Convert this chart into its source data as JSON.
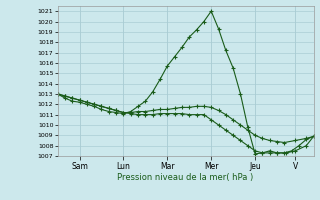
{
  "background_color": "#cce8ec",
  "grid_color": "#aacdd4",
  "line_color": "#1a5c1a",
  "xlabel": "Pression niveau de la mer( hPa )",
  "ylim": [
    1007,
    1021.5
  ],
  "yticks": [
    1007,
    1008,
    1009,
    1010,
    1011,
    1012,
    1013,
    1014,
    1015,
    1016,
    1017,
    1018,
    1019,
    1020,
    1021
  ],
  "x_day_labels": [
    "Sam",
    "Lun",
    "Mar",
    "Mer",
    "Jeu",
    "V"
  ],
  "x_day_positions": [
    24,
    72,
    120,
    168,
    216,
    260
  ],
  "xlim": [
    0,
    280
  ],
  "series1_x": [
    0,
    8,
    16,
    24,
    32,
    40,
    48,
    56,
    64,
    72,
    80,
    88,
    96,
    104,
    112,
    120,
    128,
    136,
    144,
    152,
    160,
    168,
    176,
    184,
    192,
    200,
    208,
    216,
    224,
    232,
    240,
    248,
    256,
    264,
    272,
    280
  ],
  "series1_y": [
    1013.0,
    1012.6,
    1012.3,
    1012.2,
    1012.0,
    1011.8,
    1011.5,
    1011.3,
    1011.2,
    1011.1,
    1011.3,
    1011.8,
    1012.3,
    1013.2,
    1014.4,
    1015.7,
    1016.6,
    1017.5,
    1018.5,
    1019.2,
    1020.0,
    1021.0,
    1019.3,
    1017.2,
    1015.5,
    1013.0,
    1009.8,
    1007.2,
    1007.3,
    1007.5,
    1007.3,
    1007.3,
    1007.5,
    1008.0,
    1008.6,
    1008.9
  ],
  "series2_x": [
    0,
    8,
    16,
    24,
    32,
    40,
    48,
    56,
    64,
    72,
    80,
    88,
    96,
    104,
    112,
    120,
    128,
    136,
    144,
    152,
    160,
    168,
    176,
    184,
    192,
    200,
    208,
    216,
    224,
    232,
    240,
    248,
    260,
    272,
    280
  ],
  "series2_y": [
    1013.0,
    1012.8,
    1012.6,
    1012.4,
    1012.2,
    1012.0,
    1011.8,
    1011.6,
    1011.4,
    1011.2,
    1011.2,
    1011.3,
    1011.3,
    1011.4,
    1011.5,
    1011.5,
    1011.6,
    1011.7,
    1011.7,
    1011.8,
    1011.8,
    1011.7,
    1011.4,
    1011.0,
    1010.5,
    1010.0,
    1009.5,
    1009.0,
    1008.7,
    1008.5,
    1008.4,
    1008.3,
    1008.5,
    1008.7,
    1008.9
  ],
  "series3_x": [
    0,
    8,
    16,
    24,
    32,
    40,
    48,
    56,
    64,
    72,
    80,
    88,
    96,
    104,
    112,
    120,
    128,
    136,
    144,
    152,
    160,
    168,
    176,
    184,
    192,
    200,
    208,
    216,
    224,
    232,
    240,
    250,
    260,
    272,
    280
  ],
  "series3_y": [
    1013.0,
    1012.8,
    1012.6,
    1012.4,
    1012.2,
    1012.0,
    1011.8,
    1011.6,
    1011.4,
    1011.2,
    1011.1,
    1011.0,
    1011.0,
    1011.0,
    1011.1,
    1011.1,
    1011.1,
    1011.1,
    1011.0,
    1011.0,
    1011.0,
    1010.5,
    1010.0,
    1009.5,
    1009.0,
    1008.5,
    1008.0,
    1007.5,
    1007.3,
    1007.3,
    1007.3,
    1007.3,
    1007.5,
    1008.0,
    1008.9
  ]
}
